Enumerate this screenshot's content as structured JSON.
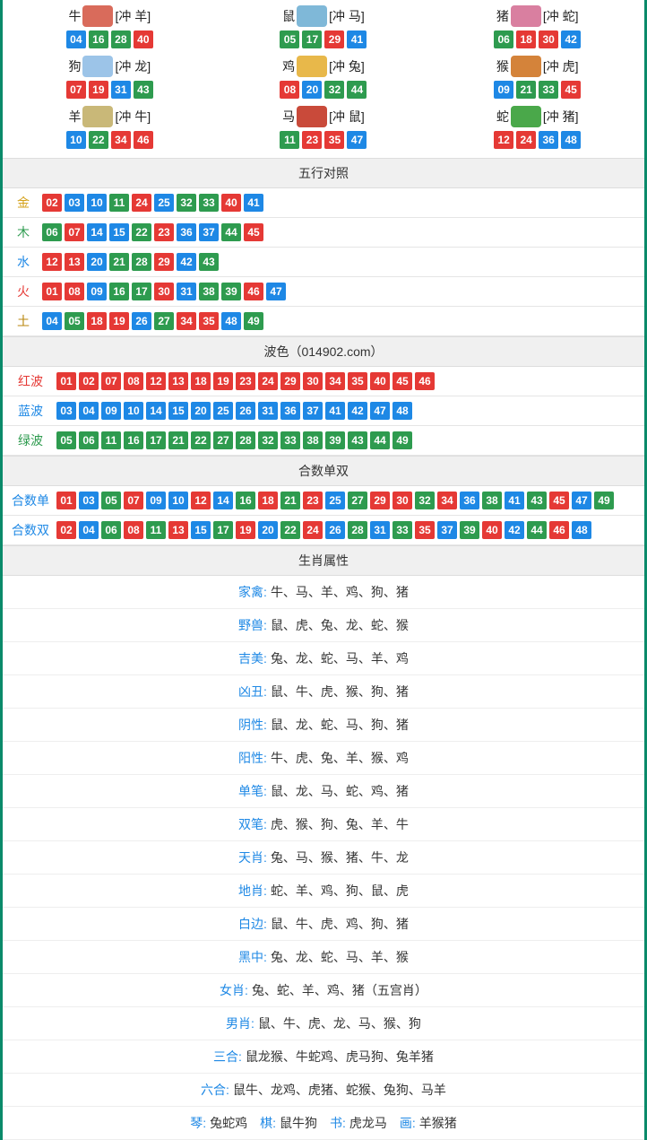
{
  "palette": {
    "red": "#e53935",
    "blue": "#1e88e5",
    "green": "#2e9b4f",
    "border": "#0a8a6a",
    "header_bg": "#f0f0f0"
  },
  "zodiac": [
    {
      "name": "牛",
      "suffix": "[冲 羊]",
      "img_color": "#d96b5b",
      "nums": [
        {
          "n": "04",
          "c": "blue"
        },
        {
          "n": "16",
          "c": "green"
        },
        {
          "n": "28",
          "c": "green"
        },
        {
          "n": "40",
          "c": "red"
        }
      ]
    },
    {
      "name": "鼠",
      "suffix": "[冲 马]",
      "img_color": "#7fb8d8",
      "nums": [
        {
          "n": "05",
          "c": "green"
        },
        {
          "n": "17",
          "c": "green"
        },
        {
          "n": "29",
          "c": "red"
        },
        {
          "n": "41",
          "c": "blue"
        }
      ]
    },
    {
      "name": "猪",
      "suffix": "[冲 蛇]",
      "img_color": "#d97fa0",
      "nums": [
        {
          "n": "06",
          "c": "green"
        },
        {
          "n": "18",
          "c": "red"
        },
        {
          "n": "30",
          "c": "red"
        },
        {
          "n": "42",
          "c": "blue"
        }
      ]
    },
    {
      "name": "狗",
      "suffix": "[冲 龙]",
      "img_color": "#9cc4e8",
      "nums": [
        {
          "n": "07",
          "c": "red"
        },
        {
          "n": "19",
          "c": "red"
        },
        {
          "n": "31",
          "c": "blue"
        },
        {
          "n": "43",
          "c": "green"
        }
      ]
    },
    {
      "name": "鸡",
      "suffix": "[冲 兔]",
      "img_color": "#e8b84a",
      "nums": [
        {
          "n": "08",
          "c": "red"
        },
        {
          "n": "20",
          "c": "blue"
        },
        {
          "n": "32",
          "c": "green"
        },
        {
          "n": "44",
          "c": "green"
        }
      ]
    },
    {
      "name": "猴",
      "suffix": "[冲 虎]",
      "img_color": "#d4833a",
      "nums": [
        {
          "n": "09",
          "c": "blue"
        },
        {
          "n": "21",
          "c": "green"
        },
        {
          "n": "33",
          "c": "green"
        },
        {
          "n": "45",
          "c": "red"
        }
      ]
    },
    {
      "name": "羊",
      "suffix": "[冲 牛]",
      "img_color": "#c9b878",
      "nums": [
        {
          "n": "10",
          "c": "blue"
        },
        {
          "n": "22",
          "c": "green"
        },
        {
          "n": "34",
          "c": "red"
        },
        {
          "n": "46",
          "c": "red"
        }
      ]
    },
    {
      "name": "马",
      "suffix": "[冲 鼠]",
      "img_color": "#c94a3a",
      "nums": [
        {
          "n": "11",
          "c": "green"
        },
        {
          "n": "23",
          "c": "red"
        },
        {
          "n": "35",
          "c": "red"
        },
        {
          "n": "47",
          "c": "blue"
        }
      ]
    },
    {
      "name": "蛇",
      "suffix": "[冲 猪]",
      "img_color": "#4aa84a",
      "nums": [
        {
          "n": "12",
          "c": "red"
        },
        {
          "n": "24",
          "c": "red"
        },
        {
          "n": "36",
          "c": "blue"
        },
        {
          "n": "48",
          "c": "blue"
        }
      ]
    }
  ],
  "wuxing_title": "五行对照",
  "wuxing": [
    {
      "label": "金",
      "color_class": "c-gold",
      "nums": [
        {
          "n": "02",
          "c": "red"
        },
        {
          "n": "03",
          "c": "blue"
        },
        {
          "n": "10",
          "c": "blue"
        },
        {
          "n": "11",
          "c": "green"
        },
        {
          "n": "24",
          "c": "red"
        },
        {
          "n": "25",
          "c": "blue"
        },
        {
          "n": "32",
          "c": "green"
        },
        {
          "n": "33",
          "c": "green"
        },
        {
          "n": "40",
          "c": "red"
        },
        {
          "n": "41",
          "c": "blue"
        }
      ]
    },
    {
      "label": "木",
      "color_class": "c-wood",
      "nums": [
        {
          "n": "06",
          "c": "green"
        },
        {
          "n": "07",
          "c": "red"
        },
        {
          "n": "14",
          "c": "blue"
        },
        {
          "n": "15",
          "c": "blue"
        },
        {
          "n": "22",
          "c": "green"
        },
        {
          "n": "23",
          "c": "red"
        },
        {
          "n": "36",
          "c": "blue"
        },
        {
          "n": "37",
          "c": "blue"
        },
        {
          "n": "44",
          "c": "green"
        },
        {
          "n": "45",
          "c": "red"
        }
      ]
    },
    {
      "label": "水",
      "color_class": "c-water",
      "nums": [
        {
          "n": "12",
          "c": "red"
        },
        {
          "n": "13",
          "c": "red"
        },
        {
          "n": "20",
          "c": "blue"
        },
        {
          "n": "21",
          "c": "green"
        },
        {
          "n": "28",
          "c": "green"
        },
        {
          "n": "29",
          "c": "red"
        },
        {
          "n": "42",
          "c": "blue"
        },
        {
          "n": "43",
          "c": "green"
        }
      ]
    },
    {
      "label": "火",
      "color_class": "c-fire",
      "nums": [
        {
          "n": "01",
          "c": "red"
        },
        {
          "n": "08",
          "c": "red"
        },
        {
          "n": "09",
          "c": "blue"
        },
        {
          "n": "16",
          "c": "green"
        },
        {
          "n": "17",
          "c": "green"
        },
        {
          "n": "30",
          "c": "red"
        },
        {
          "n": "31",
          "c": "blue"
        },
        {
          "n": "38",
          "c": "green"
        },
        {
          "n": "39",
          "c": "green"
        },
        {
          "n": "46",
          "c": "red"
        },
        {
          "n": "47",
          "c": "blue"
        }
      ]
    },
    {
      "label": "土",
      "color_class": "c-earth",
      "nums": [
        {
          "n": "04",
          "c": "blue"
        },
        {
          "n": "05",
          "c": "green"
        },
        {
          "n": "18",
          "c": "red"
        },
        {
          "n": "19",
          "c": "red"
        },
        {
          "n": "26",
          "c": "blue"
        },
        {
          "n": "27",
          "c": "green"
        },
        {
          "n": "34",
          "c": "red"
        },
        {
          "n": "35",
          "c": "red"
        },
        {
          "n": "48",
          "c": "blue"
        },
        {
          "n": "49",
          "c": "green"
        }
      ]
    }
  ],
  "wave_title": "波色（014902.com）",
  "wave": [
    {
      "label": "红波",
      "color_class": "c-red",
      "nums": [
        {
          "n": "01",
          "c": "red"
        },
        {
          "n": "02",
          "c": "red"
        },
        {
          "n": "07",
          "c": "red"
        },
        {
          "n": "08",
          "c": "red"
        },
        {
          "n": "12",
          "c": "red"
        },
        {
          "n": "13",
          "c": "red"
        },
        {
          "n": "18",
          "c": "red"
        },
        {
          "n": "19",
          "c": "red"
        },
        {
          "n": "23",
          "c": "red"
        },
        {
          "n": "24",
          "c": "red"
        },
        {
          "n": "29",
          "c": "red"
        },
        {
          "n": "30",
          "c": "red"
        },
        {
          "n": "34",
          "c": "red"
        },
        {
          "n": "35",
          "c": "red"
        },
        {
          "n": "40",
          "c": "red"
        },
        {
          "n": "45",
          "c": "red"
        },
        {
          "n": "46",
          "c": "red"
        }
      ]
    },
    {
      "label": "蓝波",
      "color_class": "c-blue",
      "nums": [
        {
          "n": "03",
          "c": "blue"
        },
        {
          "n": "04",
          "c": "blue"
        },
        {
          "n": "09",
          "c": "blue"
        },
        {
          "n": "10",
          "c": "blue"
        },
        {
          "n": "14",
          "c": "blue"
        },
        {
          "n": "15",
          "c": "blue"
        },
        {
          "n": "20",
          "c": "blue"
        },
        {
          "n": "25",
          "c": "blue"
        },
        {
          "n": "26",
          "c": "blue"
        },
        {
          "n": "31",
          "c": "blue"
        },
        {
          "n": "36",
          "c": "blue"
        },
        {
          "n": "37",
          "c": "blue"
        },
        {
          "n": "41",
          "c": "blue"
        },
        {
          "n": "42",
          "c": "blue"
        },
        {
          "n": "47",
          "c": "blue"
        },
        {
          "n": "48",
          "c": "blue"
        }
      ]
    },
    {
      "label": "绿波",
      "color_class": "c-green",
      "nums": [
        {
          "n": "05",
          "c": "green"
        },
        {
          "n": "06",
          "c": "green"
        },
        {
          "n": "11",
          "c": "green"
        },
        {
          "n": "16",
          "c": "green"
        },
        {
          "n": "17",
          "c": "green"
        },
        {
          "n": "21",
          "c": "green"
        },
        {
          "n": "22",
          "c": "green"
        },
        {
          "n": "27",
          "c": "green"
        },
        {
          "n": "28",
          "c": "green"
        },
        {
          "n": "32",
          "c": "green"
        },
        {
          "n": "33",
          "c": "green"
        },
        {
          "n": "38",
          "c": "green"
        },
        {
          "n": "39",
          "c": "green"
        },
        {
          "n": "43",
          "c": "green"
        },
        {
          "n": "44",
          "c": "green"
        },
        {
          "n": "49",
          "c": "green"
        }
      ]
    }
  ],
  "heshu_title": "合数单双",
  "heshu": [
    {
      "label": "合数单",
      "color_class": "c-blue",
      "nums": [
        {
          "n": "01",
          "c": "red"
        },
        {
          "n": "03",
          "c": "blue"
        },
        {
          "n": "05",
          "c": "green"
        },
        {
          "n": "07",
          "c": "red"
        },
        {
          "n": "09",
          "c": "blue"
        },
        {
          "n": "10",
          "c": "blue"
        },
        {
          "n": "12",
          "c": "red"
        },
        {
          "n": "14",
          "c": "blue"
        },
        {
          "n": "16",
          "c": "green"
        },
        {
          "n": "18",
          "c": "red"
        },
        {
          "n": "21",
          "c": "green"
        },
        {
          "n": "23",
          "c": "red"
        },
        {
          "n": "25",
          "c": "blue"
        },
        {
          "n": "27",
          "c": "green"
        },
        {
          "n": "29",
          "c": "red"
        },
        {
          "n": "30",
          "c": "red"
        },
        {
          "n": "32",
          "c": "green"
        },
        {
          "n": "34",
          "c": "red"
        },
        {
          "n": "36",
          "c": "blue"
        },
        {
          "n": "38",
          "c": "green"
        },
        {
          "n": "41",
          "c": "blue"
        },
        {
          "n": "43",
          "c": "green"
        },
        {
          "n": "45",
          "c": "red"
        },
        {
          "n": "47",
          "c": "blue"
        },
        {
          "n": "49",
          "c": "green"
        }
      ]
    },
    {
      "label": "合数双",
      "color_class": "c-blue",
      "nums": [
        {
          "n": "02",
          "c": "red"
        },
        {
          "n": "04",
          "c": "blue"
        },
        {
          "n": "06",
          "c": "green"
        },
        {
          "n": "08",
          "c": "red"
        },
        {
          "n": "11",
          "c": "green"
        },
        {
          "n": "13",
          "c": "red"
        },
        {
          "n": "15",
          "c": "blue"
        },
        {
          "n": "17",
          "c": "green"
        },
        {
          "n": "19",
          "c": "red"
        },
        {
          "n": "20",
          "c": "blue"
        },
        {
          "n": "22",
          "c": "green"
        },
        {
          "n": "24",
          "c": "red"
        },
        {
          "n": "26",
          "c": "blue"
        },
        {
          "n": "28",
          "c": "green"
        },
        {
          "n": "31",
          "c": "blue"
        },
        {
          "n": "33",
          "c": "green"
        },
        {
          "n": "35",
          "c": "red"
        },
        {
          "n": "37",
          "c": "blue"
        },
        {
          "n": "39",
          "c": "green"
        },
        {
          "n": "40",
          "c": "red"
        },
        {
          "n": "42",
          "c": "blue"
        },
        {
          "n": "44",
          "c": "green"
        },
        {
          "n": "46",
          "c": "red"
        },
        {
          "n": "48",
          "c": "blue"
        }
      ]
    }
  ],
  "attrs_title": "生肖属性",
  "attrs": [
    {
      "key": "家禽:",
      "key_color": "c-blue",
      "val": "牛、马、羊、鸡、狗、猪"
    },
    {
      "key": "野兽:",
      "key_color": "c-blue",
      "val": "鼠、虎、兔、龙、蛇、猴"
    },
    {
      "key": "吉美:",
      "key_color": "c-blue",
      "val": "兔、龙、蛇、马、羊、鸡"
    },
    {
      "key": "凶丑:",
      "key_color": "c-blue",
      "val": "鼠、牛、虎、猴、狗、猪"
    },
    {
      "key": "阴性:",
      "key_color": "c-blue",
      "val": "鼠、龙、蛇、马、狗、猪"
    },
    {
      "key": "阳性:",
      "key_color": "c-blue",
      "val": "牛、虎、兔、羊、猴、鸡"
    },
    {
      "key": "单笔:",
      "key_color": "c-blue",
      "val": "鼠、龙、马、蛇、鸡、猪"
    },
    {
      "key": "双笔:",
      "key_color": "c-blue",
      "val": "虎、猴、狗、兔、羊、牛"
    },
    {
      "key": "天肖:",
      "key_color": "c-blue",
      "val": "兔、马、猴、猪、牛、龙"
    },
    {
      "key": "地肖:",
      "key_color": "c-blue",
      "val": "蛇、羊、鸡、狗、鼠、虎"
    },
    {
      "key": "白边:",
      "key_color": "c-blue",
      "val": "鼠、牛、虎、鸡、狗、猪"
    },
    {
      "key": "黑中:",
      "key_color": "c-blue",
      "val": "兔、龙、蛇、马、羊、猴"
    },
    {
      "key": "女肖:",
      "key_color": "c-blue",
      "val": "兔、蛇、羊、鸡、猪（五宫肖）"
    },
    {
      "key": "男肖:",
      "key_color": "c-blue",
      "val": "鼠、牛、虎、龙、马、猴、狗"
    },
    {
      "key": "三合:",
      "key_color": "c-blue",
      "val": "鼠龙猴、牛蛇鸡、虎马狗、兔羊猪"
    },
    {
      "key": "六合:",
      "key_color": "c-blue",
      "val": "鼠牛、龙鸡、虎猪、蛇猴、兔狗、马羊"
    }
  ],
  "footer_items": [
    {
      "key": "琴:",
      "val": "兔蛇鸡"
    },
    {
      "key": "棋:",
      "val": "鼠牛狗"
    },
    {
      "key": "书:",
      "val": "虎龙马"
    },
    {
      "key": "画:",
      "val": "羊猴猪"
    }
  ]
}
